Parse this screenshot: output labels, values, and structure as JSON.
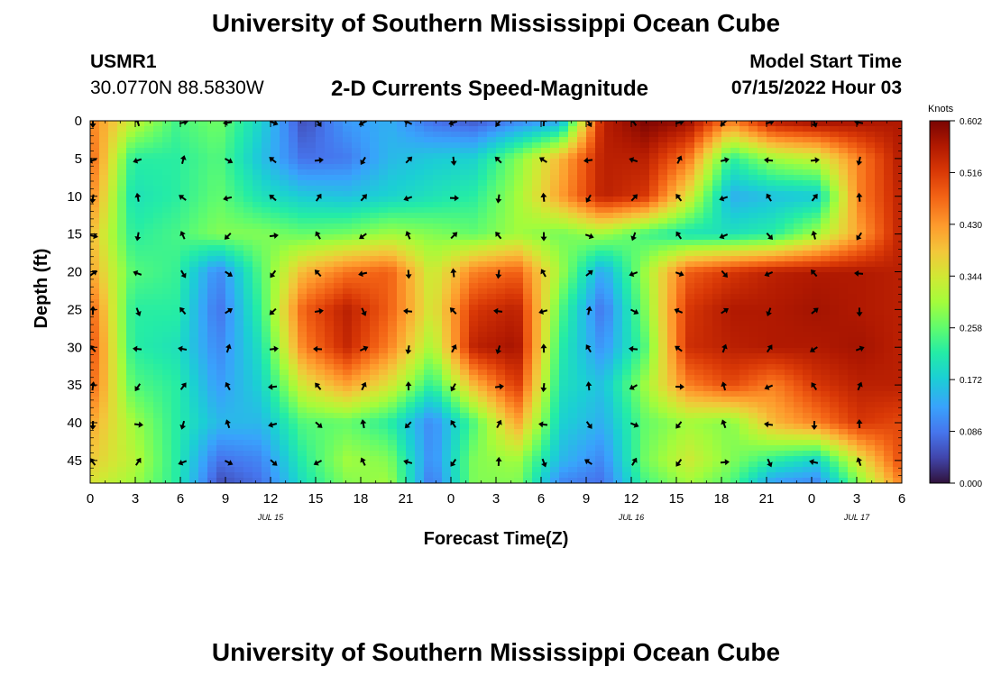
{
  "header": {
    "title": "University of Southern Mississippi Ocean Cube",
    "station": "USMR1",
    "coords": "30.0770N  88.5830W",
    "product": "2-D Currents Speed-Magnitude",
    "model_label": "Model Start Time",
    "model_time": "07/15/2022 Hour 03"
  },
  "footer": {
    "title": "University of Southern Mississippi Ocean Cube"
  },
  "chart_data": {
    "type": "heatmap",
    "title": "2-D Currents Speed-Magnitude",
    "xlabel": "Forecast Time(Z)",
    "ylabel": "Depth (ft)",
    "x_ticks": [
      "0",
      "3",
      "6",
      "9",
      "12",
      "15",
      "18",
      "21",
      "0",
      "3",
      "6",
      "9",
      "12",
      "15",
      "18",
      "21",
      "0",
      "3",
      "6"
    ],
    "date_labels": [
      {
        "label": "JUL 15",
        "at_tick": 4
      },
      {
        "label": "JUL 16",
        "at_tick": 12
      },
      {
        "label": "JUL 17",
        "at_tick": 17
      }
    ],
    "y_ticks": [
      0,
      5,
      10,
      15,
      20,
      25,
      30,
      35,
      40,
      45
    ],
    "ylim": [
      0,
      48
    ],
    "colorbar": {
      "unit": "Knots",
      "ticks": [
        "0.602",
        "0.516",
        "0.430",
        "0.344",
        "0.258",
        "0.172",
        "0.086",
        "0.000"
      ],
      "range": [
        0.0,
        0.602
      ]
    },
    "arrow_depths": [
      0,
      5,
      10,
      15,
      20,
      25,
      30,
      35,
      40,
      45
    ],
    "speed_grid_depths": [
      0,
      5,
      10,
      15,
      20,
      25,
      30,
      35,
      40,
      45,
      48
    ],
    "speed_grid": [
      [
        0.45,
        0.33,
        0.24,
        0.27,
        0.18,
        0.05,
        0.12,
        0.14,
        0.08,
        0.06,
        0.1,
        0.13,
        0.55,
        0.6,
        0.58,
        0.45,
        0.56,
        0.58,
        0.57,
        0.56
      ],
      [
        0.48,
        0.22,
        0.22,
        0.25,
        0.16,
        0.08,
        0.09,
        0.15,
        0.17,
        0.18,
        0.28,
        0.4,
        0.55,
        0.55,
        0.46,
        0.22,
        0.3,
        0.33,
        0.45,
        0.56
      ],
      [
        0.45,
        0.2,
        0.22,
        0.26,
        0.2,
        0.17,
        0.16,
        0.18,
        0.2,
        0.22,
        0.3,
        0.42,
        0.55,
        0.52,
        0.35,
        0.14,
        0.16,
        0.17,
        0.45,
        0.55
      ],
      [
        0.4,
        0.22,
        0.24,
        0.28,
        0.28,
        0.26,
        0.27,
        0.3,
        0.28,
        0.26,
        0.3,
        0.27,
        0.3,
        0.24,
        0.2,
        0.2,
        0.22,
        0.3,
        0.42,
        0.55
      ],
      [
        0.42,
        0.25,
        0.23,
        0.1,
        0.25,
        0.4,
        0.46,
        0.48,
        0.33,
        0.45,
        0.48,
        0.3,
        0.13,
        0.3,
        0.48,
        0.52,
        0.55,
        0.56,
        0.56,
        0.55
      ],
      [
        0.48,
        0.22,
        0.22,
        0.08,
        0.23,
        0.48,
        0.55,
        0.48,
        0.34,
        0.52,
        0.55,
        0.25,
        0.08,
        0.28,
        0.52,
        0.56,
        0.56,
        0.57,
        0.56,
        0.55
      ],
      [
        0.5,
        0.22,
        0.2,
        0.1,
        0.2,
        0.45,
        0.54,
        0.45,
        0.3,
        0.55,
        0.57,
        0.22,
        0.11,
        0.25,
        0.53,
        0.55,
        0.56,
        0.56,
        0.57,
        0.55
      ],
      [
        0.48,
        0.25,
        0.22,
        0.12,
        0.18,
        0.35,
        0.42,
        0.35,
        0.22,
        0.4,
        0.52,
        0.2,
        0.16,
        0.3,
        0.45,
        0.5,
        0.45,
        0.52,
        0.55,
        0.55
      ],
      [
        0.42,
        0.3,
        0.22,
        0.15,
        0.15,
        0.25,
        0.26,
        0.22,
        0.1,
        0.25,
        0.42,
        0.18,
        0.14,
        0.26,
        0.3,
        0.28,
        0.4,
        0.45,
        0.52,
        0.5
      ],
      [
        0.38,
        0.32,
        0.22,
        0.08,
        0.1,
        0.22,
        0.3,
        0.28,
        0.1,
        0.28,
        0.3,
        0.15,
        0.1,
        0.27,
        0.34,
        0.28,
        0.22,
        0.18,
        0.35,
        0.5
      ],
      [
        0.35,
        0.3,
        0.22,
        0.05,
        0.08,
        0.2,
        0.28,
        0.3,
        0.08,
        0.28,
        0.28,
        0.1,
        0.08,
        0.24,
        0.3,
        0.25,
        0.12,
        0.1,
        0.28,
        0.45
      ]
    ]
  }
}
